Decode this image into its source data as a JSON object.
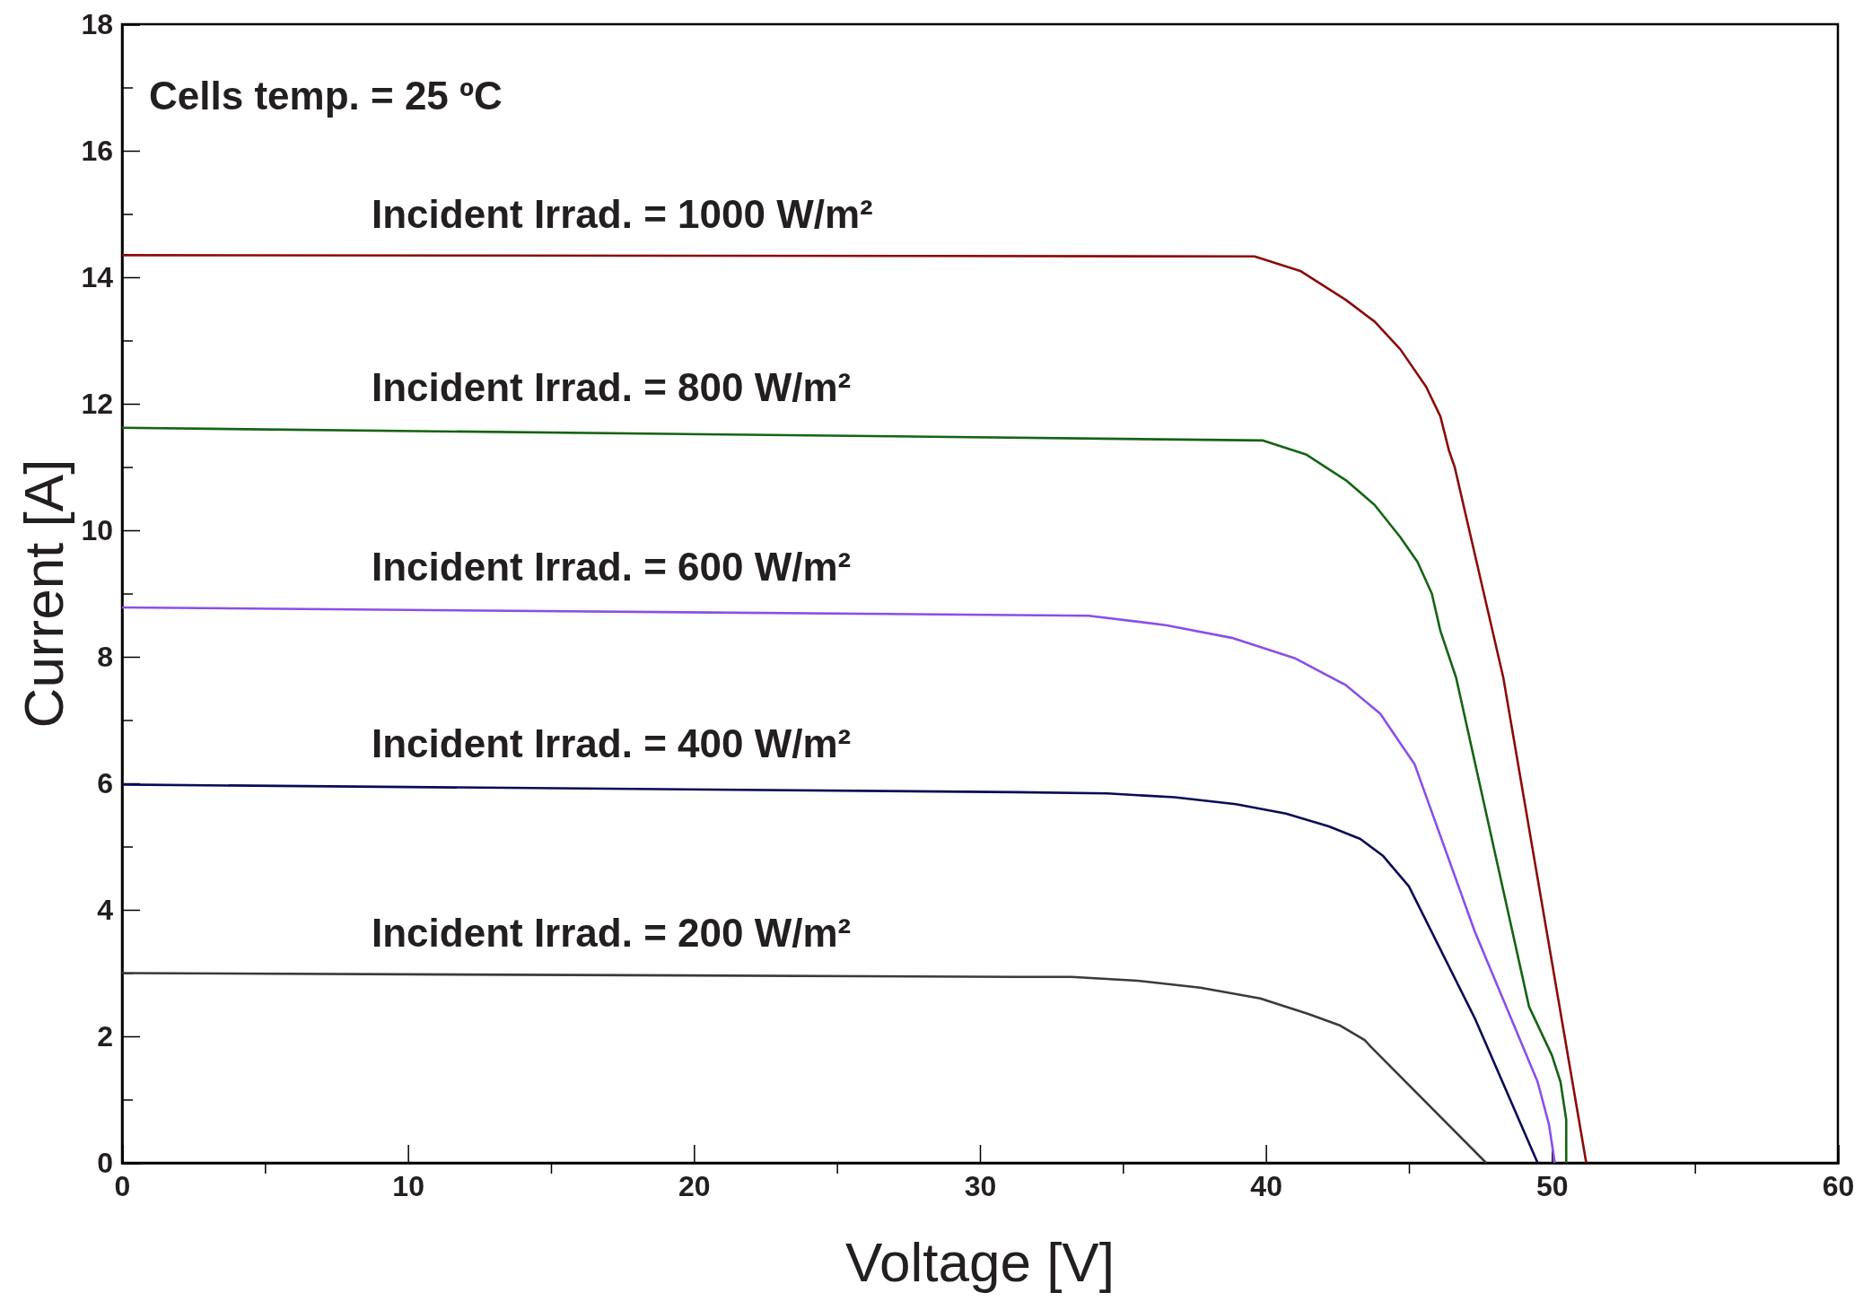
{
  "chart_data": {
    "type": "line",
    "xlabel": "Voltage [V]",
    "ylabel": "Current [A]",
    "annotations": [
      "Cells temp. = 25 ºC"
    ],
    "xlim": [
      0,
      60
    ],
    "ylim": [
      0,
      18
    ],
    "xticks": [
      0,
      {
        "value": 5,
        "label": null
      },
      10,
      {
        "value": 15,
        "label": null
      },
      20,
      {
        "value": 25,
        "label": null
      },
      30,
      {
        "value": 35,
        "label": null
      },
      40,
      {
        "value": 45,
        "label": null
      },
      50,
      {
        "value": 55,
        "label": null
      },
      60
    ],
    "yticks": [
      0,
      {
        "value": 1,
        "label": null
      },
      2,
      {
        "value": 3,
        "label": null
      },
      4,
      {
        "value": 5,
        "label": null
      },
      6,
      {
        "value": 7,
        "label": null
      },
      8,
      {
        "value": 9,
        "label": null
      },
      10,
      {
        "value": 11,
        "label": null
      },
      12,
      {
        "value": 13,
        "label": null
      },
      14,
      {
        "value": 15,
        "label": null
      },
      16,
      {
        "value": 17,
        "label": null
      },
      18
    ],
    "grid": false,
    "marker": "none",
    "line_style": "solid",
    "series": [
      {
        "name": "Incident Irrad. = 1000 W/m²",
        "color": "#8b0a0a",
        "x": [
          0,
          39.6,
          41.2,
          42.8,
          43.8,
          44.7,
          45.6,
          46.1,
          46.4,
          46.6,
          48.3,
          51.2
        ],
        "values": [
          14.35,
          14.33,
          14.1,
          13.64,
          13.3,
          12.86,
          12.27,
          11.8,
          11.26,
          11.0,
          7.67,
          0
        ]
      },
      {
        "name": "Incident Irrad. = 800 W/m²",
        "color": "#146414",
        "x": [
          0,
          39.9,
          41.4,
          42.8,
          43.8,
          44.7,
          45.3,
          45.8,
          46.1,
          46.65,
          49.2,
          50.0,
          50.3,
          50.5,
          50.5
        ],
        "values": [
          11.62,
          11.42,
          11.2,
          10.79,
          10.4,
          9.89,
          9.5,
          9.0,
          8.41,
          7.67,
          2.47,
          1.7,
          1.28,
          0.68,
          0
        ]
      },
      {
        "name": "Incident Irrad. = 600 W/m²",
        "color": "#8a4fe8",
        "x": [
          0,
          31.2,
          33.8,
          36.5,
          38.8,
          41.0,
          42.8,
          44.0,
          44.7,
          45.2,
          47.3,
          49.5,
          49.9,
          50.1
        ],
        "values": [
          8.78,
          8.66,
          8.65,
          8.5,
          8.3,
          7.98,
          7.55,
          7.1,
          6.63,
          6.3,
          3.66,
          1.28,
          0.6,
          0
        ]
      },
      {
        "name": "Incident Irrad. = 400 W/m²",
        "color": "#0a0a55",
        "x": [
          0,
          31.25,
          34.45,
          36.8,
          38.95,
          40.7,
          42.2,
          43.3,
          44.1,
          45.0,
          47.3,
          49.5
        ],
        "values": [
          5.98,
          5.86,
          5.84,
          5.78,
          5.67,
          5.52,
          5.32,
          5.12,
          4.85,
          4.37,
          2.29,
          0
        ]
      },
      {
        "name": "Incident Irrad. = 200 W/m²",
        "color": "#3a3a3a",
        "x": [
          0,
          31.25,
          33.2,
          35.5,
          37.7,
          39.8,
          41.5,
          42.6,
          43.45,
          43.7,
          47.7
        ],
        "values": [
          3.0,
          2.94,
          2.94,
          2.88,
          2.77,
          2.6,
          2.35,
          2.17,
          1.94,
          1.82,
          0
        ]
      }
    ]
  }
}
